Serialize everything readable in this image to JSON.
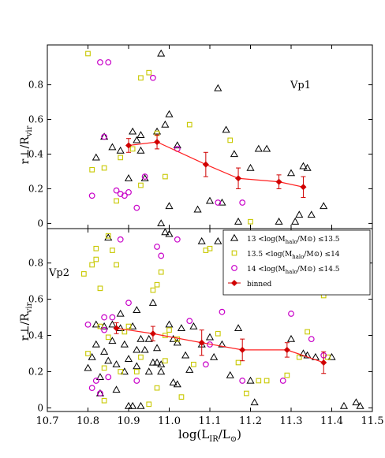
{
  "chart_data": [
    {
      "type": "scatter",
      "panel_label": "Vp1",
      "ylabel": "r⊥/R_vir",
      "ylim": [
        -0.03,
        1.03
      ],
      "xlim": [
        10.7,
        11.5
      ],
      "yticks": [
        0,
        0.2,
        0.4,
        0.6,
        0.8
      ],
      "ytick_labels": [
        "0",
        "0.2",
        "0.4",
        "0.6",
        "0.8"
      ],
      "series": [
        {
          "key": "low",
          "marker": "triangle",
          "color": "#000000",
          "points": [
            [
              10.82,
              0.38
            ],
            [
              10.84,
              0.5
            ],
            [
              10.86,
              0.44
            ],
            [
              10.88,
              0.42
            ],
            [
              10.9,
              0.26
            ],
            [
              10.91,
              0.53
            ],
            [
              10.92,
              0.48
            ],
            [
              10.93,
              0.51
            ],
            [
              10.93,
              0.42
            ],
            [
              10.94,
              0.26
            ],
            [
              10.97,
              0.53
            ],
            [
              10.98,
              0.98
            ],
            [
              10.99,
              0.57
            ],
            [
              11.0,
              0.63
            ],
            [
              11.02,
              0.45
            ],
            [
              11.07,
              0.08
            ],
            [
              11.1,
              0.13
            ],
            [
              11.12,
              0.78
            ],
            [
              11.14,
              0.54
            ],
            [
              11.16,
              0.4
            ],
            [
              11.17,
              0.01
            ],
            [
              11.2,
              0.32
            ],
            [
              11.22,
              0.43
            ],
            [
              11.24,
              0.43
            ],
            [
              11.27,
              0.01
            ],
            [
              11.3,
              0.29
            ],
            [
              11.33,
              0.33
            ],
            [
              11.34,
              0.32
            ],
            [
              11.32,
              0.05
            ],
            [
              11.35,
              0.05
            ],
            [
              11.38,
              0.1
            ],
            [
              11.31,
              0.01
            ],
            [
              11.0,
              0.1
            ],
            [
              10.98,
              0.0
            ],
            [
              11.13,
              0.12
            ]
          ]
        },
        {
          "key": "mid",
          "marker": "square",
          "color": "#c8c800",
          "points": [
            [
              10.8,
              0.98
            ],
            [
              10.81,
              0.31
            ],
            [
              10.84,
              0.32
            ],
            [
              10.87,
              0.13
            ],
            [
              10.88,
              0.38
            ],
            [
              10.91,
              0.43
            ],
            [
              10.93,
              0.84
            ],
            [
              10.95,
              0.87
            ],
            [
              10.97,
              0.52
            ],
            [
              10.99,
              0.27
            ],
            [
              11.05,
              0.57
            ],
            [
              11.15,
              0.48
            ],
            [
              11.2,
              0.01
            ],
            [
              10.93,
              0.22
            ]
          ]
        },
        {
          "key": "high",
          "marker": "circle",
          "color": "#c800c8",
          "points": [
            [
              10.81,
              0.16
            ],
            [
              10.83,
              0.93
            ],
            [
              10.85,
              0.93
            ],
            [
              10.87,
              0.19
            ],
            [
              10.88,
              0.17
            ],
            [
              10.89,
              0.16
            ],
            [
              10.92,
              0.09
            ],
            [
              10.94,
              0.27
            ],
            [
              10.96,
              0.84
            ],
            [
              11.02,
              0.43
            ],
            [
              11.12,
              0.12
            ],
            [
              11.18,
              0.12
            ],
            [
              10.84,
              0.5
            ],
            [
              10.9,
              0.18
            ]
          ]
        }
      ],
      "binned": {
        "x": [
          10.9,
          10.97,
          11.09,
          11.17,
          11.27,
          11.33
        ],
        "y": [
          0.45,
          0.47,
          0.34,
          0.26,
          0.24,
          0.21
        ],
        "err": [
          0.04,
          0.04,
          0.07,
          0.06,
          0.04,
          0.06
        ]
      }
    },
    {
      "type": "scatter",
      "panel_label": "Vp2",
      "ylabel": "r⊥/R_vir",
      "xlabel": "log(L_IR/L⊙)",
      "ylim": [
        -0.02,
        0.99
      ],
      "xlim": [
        10.7,
        11.5
      ],
      "yticks": [
        0,
        0.2,
        0.4,
        0.6,
        0.8
      ],
      "ytick_labels": [
        "0",
        "0.2",
        "0.4",
        "0.6",
        "0.8"
      ],
      "xticks": [
        10.7,
        10.8,
        10.9,
        11.0,
        11.1,
        11.2,
        11.3,
        11.4,
        11.5
      ],
      "xtick_labels": [
        "10.7",
        "10.8",
        "10.9",
        "11.0",
        "11.1",
        "11.2",
        "11.3",
        "11.4",
        "11.5"
      ],
      "series": [
        {
          "key": "low",
          "marker": "triangle",
          "color": "#000000",
          "points": [
            [
              10.8,
              0.22
            ],
            [
              10.81,
              0.28
            ],
            [
              10.82,
              0.35
            ],
            [
              10.82,
              0.46
            ],
            [
              10.83,
              0.17
            ],
            [
              10.83,
              0.08
            ],
            [
              10.84,
              0.31
            ],
            [
              10.84,
              0.45
            ],
            [
              10.85,
              0.94
            ],
            [
              10.85,
              0.26
            ],
            [
              10.86,
              0.37
            ],
            [
              10.86,
              0.46
            ],
            [
              10.87,
              0.24
            ],
            [
              10.87,
              0.1
            ],
            [
              10.88,
              0.52
            ],
            [
              10.88,
              0.44
            ],
            [
              10.89,
              0.2
            ],
            [
              10.89,
              0.35
            ],
            [
              10.9,
              0.01
            ],
            [
              10.9,
              0.27
            ],
            [
              10.91,
              0.45
            ],
            [
              10.91,
              0.01
            ],
            [
              10.92,
              0.23
            ],
            [
              10.92,
              0.32
            ],
            [
              10.92,
              0.54
            ],
            [
              10.93,
              0.01
            ],
            [
              10.93,
              0.38
            ],
            [
              10.94,
              0.32
            ],
            [
              10.95,
              0.38
            ],
            [
              10.95,
              0.2
            ],
            [
              10.96,
              0.58
            ],
            [
              10.96,
              0.25
            ],
            [
              10.97,
              0.25
            ],
            [
              10.97,
              0.33
            ],
            [
              10.98,
              0.2
            ],
            [
              10.98,
              0.24
            ],
            [
              10.99,
              0.97
            ],
            [
              11.0,
              0.96
            ],
            [
              11.0,
              0.46
            ],
            [
              11.01,
              0.38
            ],
            [
              11.01,
              0.14
            ],
            [
              11.02,
              0.13
            ],
            [
              11.02,
              0.36
            ],
            [
              11.03,
              0.44
            ],
            [
              11.04,
              0.29
            ],
            [
              11.05,
              0.21
            ],
            [
              11.06,
              0.45
            ],
            [
              11.08,
              0.35
            ],
            [
              11.08,
              0.92
            ],
            [
              11.1,
              0.39
            ],
            [
              11.11,
              0.28
            ],
            [
              11.12,
              0.92
            ],
            [
              11.13,
              0.35
            ],
            [
              11.15,
              0.18
            ],
            [
              11.17,
              0.44
            ],
            [
              11.2,
              0.15
            ],
            [
              11.25,
              0.67
            ],
            [
              11.3,
              0.38
            ],
            [
              11.33,
              0.3
            ],
            [
              11.34,
              0.29
            ],
            [
              11.36,
              0.28
            ],
            [
              11.38,
              0.66
            ],
            [
              11.4,
              0.28
            ],
            [
              11.43,
              0.01
            ],
            [
              11.46,
              0.03
            ],
            [
              11.47,
              0.01
            ],
            [
              11.21,
              0.03
            ]
          ]
        },
        {
          "key": "mid",
          "marker": "square",
          "color": "#c8c800",
          "points": [
            [
              10.79,
              0.74
            ],
            [
              10.8,
              0.3
            ],
            [
              10.81,
              0.79
            ],
            [
              10.82,
              0.82
            ],
            [
              10.82,
              0.88
            ],
            [
              10.83,
              0.45
            ],
            [
              10.83,
              0.66
            ],
            [
              10.84,
              0.04
            ],
            [
              10.84,
              0.22
            ],
            [
              10.85,
              0.95
            ],
            [
              10.85,
              0.39
            ],
            [
              10.86,
              0.87
            ],
            [
              10.87,
              0.79
            ],
            [
              10.88,
              0.2
            ],
            [
              10.89,
              0.42
            ],
            [
              10.9,
              0.45
            ],
            [
              10.92,
              0.2
            ],
            [
              10.93,
              0.28
            ],
            [
              10.95,
              0.02
            ],
            [
              10.96,
              0.65
            ],
            [
              10.97,
              0.68
            ],
            [
              10.98,
              0.75
            ],
            [
              10.99,
              0.4
            ],
            [
              10.99,
              0.26
            ],
            [
              11.0,
              0.43
            ],
            [
              11.02,
              0.38
            ],
            [
              11.03,
              0.06
            ],
            [
              11.06,
              0.24
            ],
            [
              11.09,
              0.87
            ],
            [
              11.1,
              0.88
            ],
            [
              11.12,
              0.41
            ],
            [
              11.17,
              0.25
            ],
            [
              11.19,
              0.08
            ],
            [
              11.22,
              0.15
            ],
            [
              11.24,
              0.15
            ],
            [
              11.29,
              0.18
            ],
            [
              11.32,
              0.28
            ],
            [
              11.34,
              0.42
            ],
            [
              11.38,
              0.62
            ],
            [
              11.39,
              0.28
            ],
            [
              10.97,
              0.11
            ]
          ]
        },
        {
          "key": "high",
          "marker": "circle",
          "color": "#c800c8",
          "points": [
            [
              10.8,
              0.46
            ],
            [
              10.81,
              0.11
            ],
            [
              10.82,
              0.15
            ],
            [
              10.83,
              0.08
            ],
            [
              10.84,
              0.43
            ],
            [
              10.84,
              0.5
            ],
            [
              10.85,
              0.17
            ],
            [
              10.86,
              0.5
            ],
            [
              10.88,
              0.93
            ],
            [
              10.9,
              0.58
            ],
            [
              10.92,
              0.15
            ],
            [
              10.97,
              0.89
            ],
            [
              10.98,
              0.84
            ],
            [
              11.02,
              0.93
            ],
            [
              11.05,
              0.48
            ],
            [
              11.09,
              0.24
            ],
            [
              11.13,
              0.53
            ],
            [
              11.1,
              0.35
            ],
            [
              11.18,
              0.15
            ],
            [
              11.28,
              0.15
            ],
            [
              11.35,
              0.38
            ],
            [
              11.3,
              0.52
            ],
            [
              11.38,
              0.29
            ]
          ]
        }
      ],
      "binned": {
        "x": [
          10.87,
          10.96,
          11.08,
          11.18,
          11.29,
          11.38
        ],
        "y": [
          0.44,
          0.41,
          0.36,
          0.32,
          0.32,
          0.25
        ],
        "err": [
          0.03,
          0.04,
          0.07,
          0.06,
          0.04,
          0.06
        ]
      },
      "legend": {
        "placement": "top-right",
        "entries": [
          {
            "key": "low",
            "marker": "triangle",
            "color": "#000000",
            "pre": "13 <log(M",
            "sub": "halo",
            "post": "/M⊙) ≤13.5"
          },
          {
            "key": "mid",
            "marker": "square",
            "color": "#c8c800",
            "pre": "13.5 <log(M",
            "sub": "halo",
            "post": "/M⊙) ≤14"
          },
          {
            "key": "high",
            "marker": "circle",
            "color": "#c800c8",
            "pre": "14 <log(M",
            "sub": "halo",
            "post": "/M⊙) ≤14.5"
          },
          {
            "key": "binned",
            "marker": "diamond",
            "color": "#d00000",
            "label": "binned"
          }
        ]
      }
    }
  ],
  "axis_text": {
    "ylabel_main": "r⊥/R",
    "ylabel_sub": "vir",
    "xlabel_main": "log(L",
    "xlabel_sub1": "IR",
    "xlabel_mid": "/L",
    "xlabel_sub2": "⊙",
    "xlabel_end": ")"
  },
  "colors": {
    "binned": "#d00000",
    "binned_line": "#ff2020",
    "low": "#000000",
    "mid": "#c8c800",
    "high": "#c800c8"
  }
}
